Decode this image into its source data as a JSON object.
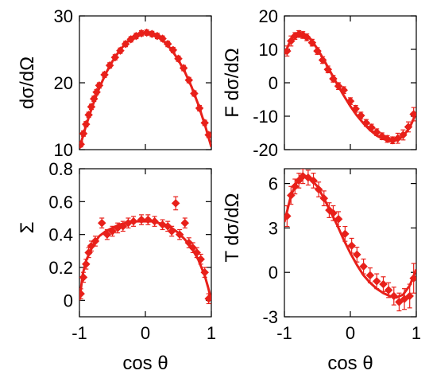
{
  "colors": {
    "series": "#e8201a",
    "axis": "#000000",
    "background": "#ffffff"
  },
  "chart_data": [
    {
      "id": "panel-tl",
      "type": "scatter",
      "ylabel": "dσ/dΩ",
      "xlabel": "",
      "xlim": [
        -1,
        1
      ],
      "ylim": [
        10,
        30
      ],
      "yticks": [
        "10",
        "20",
        "30"
      ],
      "xticks": [],
      "grid": false,
      "points": [
        {
          "x": -0.98,
          "y": 10.8,
          "err": 0.4
        },
        {
          "x": -0.94,
          "y": 12.4,
          "err": 0.4
        },
        {
          "x": -0.9,
          "y": 13.8,
          "err": 0.4
        },
        {
          "x": -0.86,
          "y": 15.2,
          "err": 0.4
        },
        {
          "x": -0.82,
          "y": 16.4,
          "err": 0.4
        },
        {
          "x": -0.78,
          "y": 17.6,
          "err": 0.4
        },
        {
          "x": -0.74,
          "y": 18.6,
          "err": 0.4
        },
        {
          "x": -0.7,
          "y": 19.6,
          "err": 0.4
        },
        {
          "x": -0.62,
          "y": 21.2,
          "err": 0.4
        },
        {
          "x": -0.54,
          "y": 22.6,
          "err": 0.4
        },
        {
          "x": -0.46,
          "y": 23.8,
          "err": 0.4
        },
        {
          "x": -0.38,
          "y": 24.8,
          "err": 0.4
        },
        {
          "x": -0.3,
          "y": 25.8,
          "err": 0.4
        },
        {
          "x": -0.22,
          "y": 26.5,
          "err": 0.4
        },
        {
          "x": -0.14,
          "y": 27.0,
          "err": 0.4
        },
        {
          "x": -0.06,
          "y": 27.4,
          "err": 0.4
        },
        {
          "x": 0.02,
          "y": 27.5,
          "err": 0.4
        },
        {
          "x": 0.1,
          "y": 27.3,
          "err": 0.4
        },
        {
          "x": 0.18,
          "y": 27.0,
          "err": 0.4
        },
        {
          "x": 0.26,
          "y": 26.6,
          "err": 0.4
        },
        {
          "x": 0.34,
          "y": 25.8,
          "err": 0.4
        },
        {
          "x": 0.42,
          "y": 24.9,
          "err": 0.4
        },
        {
          "x": 0.5,
          "y": 23.6,
          "err": 0.4
        },
        {
          "x": 0.58,
          "y": 22.2,
          "err": 0.4
        },
        {
          "x": 0.66,
          "y": 20.4,
          "err": 0.4
        },
        {
          "x": 0.74,
          "y": 18.4,
          "err": 0.4
        },
        {
          "x": 0.82,
          "y": 16.2,
          "err": 0.4
        },
        {
          "x": 0.9,
          "y": 14.0,
          "err": 0.4
        },
        {
          "x": 0.96,
          "y": 12.2,
          "err": 0.4
        }
      ],
      "curve": [
        {
          "x": -1.0,
          "y": 10.2
        },
        {
          "x": -0.9,
          "y": 13.6
        },
        {
          "x": -0.8,
          "y": 16.6
        },
        {
          "x": -0.7,
          "y": 19.2
        },
        {
          "x": -0.6,
          "y": 21.4
        },
        {
          "x": -0.5,
          "y": 23.2
        },
        {
          "x": -0.4,
          "y": 24.7
        },
        {
          "x": -0.3,
          "y": 25.9
        },
        {
          "x": -0.2,
          "y": 26.8
        },
        {
          "x": -0.1,
          "y": 27.3
        },
        {
          "x": 0.0,
          "y": 27.4
        },
        {
          "x": 0.1,
          "y": 27.2
        },
        {
          "x": 0.2,
          "y": 26.8
        },
        {
          "x": 0.3,
          "y": 26.0
        },
        {
          "x": 0.4,
          "y": 24.9
        },
        {
          "x": 0.5,
          "y": 23.4
        },
        {
          "x": 0.6,
          "y": 21.6
        },
        {
          "x": 0.7,
          "y": 19.4
        },
        {
          "x": 0.8,
          "y": 16.8
        },
        {
          "x": 0.9,
          "y": 13.8
        },
        {
          "x": 1.0,
          "y": 10.4
        }
      ]
    },
    {
      "id": "panel-tr",
      "type": "scatter",
      "ylabel": "F dσ/dΩ",
      "xlabel": "",
      "xlim": [
        -1,
        1
      ],
      "ylim": [
        -20,
        20
      ],
      "yticks": [
        "-20",
        "-10",
        "0",
        "10",
        "20"
      ],
      "xticks": [],
      "grid": false,
      "points": [
        {
          "x": -0.96,
          "y": 9.5,
          "err": 1.5
        },
        {
          "x": -0.9,
          "y": 12.5,
          "err": 1.5
        },
        {
          "x": -0.84,
          "y": 14.0,
          "err": 1.0
        },
        {
          "x": -0.78,
          "y": 14.6,
          "err": 1.0
        },
        {
          "x": -0.72,
          "y": 14.3,
          "err": 1.0
        },
        {
          "x": -0.66,
          "y": 13.6,
          "err": 1.0
        },
        {
          "x": -0.58,
          "y": 12.0,
          "err": 1.0
        },
        {
          "x": -0.5,
          "y": 9.5,
          "err": 1.0
        },
        {
          "x": -0.42,
          "y": 6.8,
          "err": 1.0
        },
        {
          "x": -0.34,
          "y": 4.0,
          "err": 1.0
        },
        {
          "x": -0.26,
          "y": 1.2,
          "err": 1.0
        },
        {
          "x": -0.18,
          "y": -1.0,
          "err": 1.0
        },
        {
          "x": -0.1,
          "y": -2.2,
          "err": 1.0
        },
        {
          "x": 0.0,
          "y": -5.5,
          "err": 1.0
        },
        {
          "x": 0.08,
          "y": -7.8,
          "err": 1.0
        },
        {
          "x": 0.16,
          "y": -9.8,
          "err": 1.0
        },
        {
          "x": 0.24,
          "y": -12.0,
          "err": 1.0
        },
        {
          "x": 0.32,
          "y": -13.4,
          "err": 1.0
        },
        {
          "x": 0.4,
          "y": -14.8,
          "err": 1.0
        },
        {
          "x": 0.48,
          "y": -16.0,
          "err": 1.0
        },
        {
          "x": 0.56,
          "y": -16.8,
          "err": 1.0
        },
        {
          "x": 0.64,
          "y": -17.2,
          "err": 1.0
        },
        {
          "x": 0.72,
          "y": -16.6,
          "err": 1.5
        },
        {
          "x": 0.8,
          "y": -15.6,
          "err": 1.5
        },
        {
          "x": 0.88,
          "y": -13.2,
          "err": 1.5
        },
        {
          "x": 0.96,
          "y": -9.4,
          "err": 2.0
        }
      ],
      "curve": [
        {
          "x": -1.0,
          "y": 8.5
        },
        {
          "x": -0.9,
          "y": 13.0
        },
        {
          "x": -0.8,
          "y": 14.8
        },
        {
          "x": -0.7,
          "y": 14.6
        },
        {
          "x": -0.6,
          "y": 13.0
        },
        {
          "x": -0.5,
          "y": 10.2
        },
        {
          "x": -0.4,
          "y": 6.8
        },
        {
          "x": -0.3,
          "y": 3.2
        },
        {
          "x": -0.2,
          "y": -0.4
        },
        {
          "x": -0.1,
          "y": -3.8
        },
        {
          "x": 0.0,
          "y": -7.0
        },
        {
          "x": 0.1,
          "y": -9.8
        },
        {
          "x": 0.2,
          "y": -12.2
        },
        {
          "x": 0.3,
          "y": -14.2
        },
        {
          "x": 0.4,
          "y": -15.8
        },
        {
          "x": 0.5,
          "y": -16.8
        },
        {
          "x": 0.6,
          "y": -17.4
        },
        {
          "x": 0.7,
          "y": -17.2
        },
        {
          "x": 0.8,
          "y": -16.0
        },
        {
          "x": 0.9,
          "y": -13.4
        },
        {
          "x": 1.0,
          "y": -9.0
        }
      ]
    },
    {
      "id": "panel-bl",
      "type": "scatter",
      "ylabel": "Σ",
      "xlabel": "cos θ",
      "xlim": [
        -1,
        1
      ],
      "ylim": [
        -0.1,
        0.8
      ],
      "yticks": [
        "0",
        "0.2",
        "0.4",
        "0.6",
        "0.8"
      ],
      "xticks": [
        "-1",
        "0",
        "1"
      ],
      "grid": false,
      "points": [
        {
          "x": -0.98,
          "y": 0.04,
          "err": 0.03
        },
        {
          "x": -0.94,
          "y": 0.14,
          "err": 0.03
        },
        {
          "x": -0.9,
          "y": 0.22,
          "err": 0.03
        },
        {
          "x": -0.86,
          "y": 0.29,
          "err": 0.03
        },
        {
          "x": -0.82,
          "y": 0.33,
          "err": 0.03
        },
        {
          "x": -0.76,
          "y": 0.36,
          "err": 0.03
        },
        {
          "x": -0.66,
          "y": 0.47,
          "err": 0.03
        },
        {
          "x": -0.58,
          "y": 0.4,
          "err": 0.03
        },
        {
          "x": -0.5,
          "y": 0.42,
          "err": 0.03
        },
        {
          "x": -0.42,
          "y": 0.44,
          "err": 0.03
        },
        {
          "x": -0.34,
          "y": 0.45,
          "err": 0.03
        },
        {
          "x": -0.26,
          "y": 0.47,
          "err": 0.03
        },
        {
          "x": -0.18,
          "y": 0.48,
          "err": 0.03
        },
        {
          "x": -0.06,
          "y": 0.49,
          "err": 0.03
        },
        {
          "x": 0.04,
          "y": 0.49,
          "err": 0.03
        },
        {
          "x": 0.14,
          "y": 0.48,
          "err": 0.03
        },
        {
          "x": 0.26,
          "y": 0.46,
          "err": 0.03
        },
        {
          "x": 0.34,
          "y": 0.45,
          "err": 0.03
        },
        {
          "x": 0.4,
          "y": 0.42,
          "err": 0.03
        },
        {
          "x": 0.46,
          "y": 0.59,
          "err": 0.04
        },
        {
          "x": 0.52,
          "y": 0.4,
          "err": 0.03
        },
        {
          "x": 0.6,
          "y": 0.47,
          "err": 0.03
        },
        {
          "x": 0.66,
          "y": 0.35,
          "err": 0.03
        },
        {
          "x": 0.72,
          "y": 0.32,
          "err": 0.03
        },
        {
          "x": 0.78,
          "y": 0.29,
          "err": 0.03
        },
        {
          "x": 0.84,
          "y": 0.25,
          "err": 0.03
        },
        {
          "x": 0.9,
          "y": 0.17,
          "err": 0.03
        },
        {
          "x": 0.96,
          "y": 0.01,
          "err": 0.03
        }
      ],
      "curve": [
        {
          "x": -1.0,
          "y": 0.0
        },
        {
          "x": -0.95,
          "y": 0.16
        },
        {
          "x": -0.9,
          "y": 0.24
        },
        {
          "x": -0.8,
          "y": 0.33
        },
        {
          "x": -0.7,
          "y": 0.39
        },
        {
          "x": -0.6,
          "y": 0.42
        },
        {
          "x": -0.5,
          "y": 0.44
        },
        {
          "x": -0.4,
          "y": 0.46
        },
        {
          "x": -0.3,
          "y": 0.47
        },
        {
          "x": -0.2,
          "y": 0.48
        },
        {
          "x": -0.1,
          "y": 0.48
        },
        {
          "x": 0.0,
          "y": 0.48
        },
        {
          "x": 0.1,
          "y": 0.48
        },
        {
          "x": 0.2,
          "y": 0.47
        },
        {
          "x": 0.3,
          "y": 0.46
        },
        {
          "x": 0.4,
          "y": 0.44
        },
        {
          "x": 0.5,
          "y": 0.41
        },
        {
          "x": 0.6,
          "y": 0.37
        },
        {
          "x": 0.7,
          "y": 0.32
        },
        {
          "x": 0.8,
          "y": 0.25
        },
        {
          "x": 0.9,
          "y": 0.15
        },
        {
          "x": 0.95,
          "y": 0.08
        },
        {
          "x": 1.0,
          "y": 0.0
        }
      ]
    },
    {
      "id": "panel-br",
      "type": "scatter",
      "ylabel": "T dσ/dΩ",
      "xlabel": "cos θ",
      "xlim": [
        -1,
        1
      ],
      "ylim": [
        -3,
        7
      ],
      "yticks": [
        "-3",
        "0",
        "3",
        "6"
      ],
      "xticks": [
        "-1",
        "0",
        "1"
      ],
      "grid": false,
      "points": [
        {
          "x": -0.96,
          "y": 3.8,
          "err": 0.7
        },
        {
          "x": -0.9,
          "y": 5.2,
          "err": 0.6
        },
        {
          "x": -0.84,
          "y": 5.8,
          "err": 0.5
        },
        {
          "x": -0.78,
          "y": 6.2,
          "err": 0.5
        },
        {
          "x": -0.72,
          "y": 6.5,
          "err": 0.5
        },
        {
          "x": -0.64,
          "y": 6.4,
          "err": 0.5
        },
        {
          "x": -0.56,
          "y": 6.2,
          "err": 0.5
        },
        {
          "x": -0.48,
          "y": 5.6,
          "err": 0.5
        },
        {
          "x": -0.4,
          "y": 5.0,
          "err": 0.5
        },
        {
          "x": -0.32,
          "y": 4.2,
          "err": 0.5
        },
        {
          "x": -0.26,
          "y": 4.0,
          "err": 0.5
        },
        {
          "x": -0.18,
          "y": 3.6,
          "err": 0.5
        },
        {
          "x": -0.08,
          "y": 2.6,
          "err": 0.5
        },
        {
          "x": 0.02,
          "y": 1.8,
          "err": 0.5
        },
        {
          "x": 0.1,
          "y": 1.2,
          "err": 0.5
        },
        {
          "x": 0.2,
          "y": 0.4,
          "err": 0.5
        },
        {
          "x": 0.3,
          "y": -0.2,
          "err": 0.5
        },
        {
          "x": 0.4,
          "y": -0.6,
          "err": 0.5
        },
        {
          "x": 0.5,
          "y": -0.8,
          "err": 0.5
        },
        {
          "x": 0.58,
          "y": -1.2,
          "err": 0.5
        },
        {
          "x": 0.66,
          "y": -1.6,
          "err": 0.6
        },
        {
          "x": 0.74,
          "y": -2.0,
          "err": 0.6
        },
        {
          "x": 0.82,
          "y": -1.8,
          "err": 0.7
        },
        {
          "x": 0.9,
          "y": -1.6,
          "err": 0.8
        },
        {
          "x": 0.96,
          "y": -0.4,
          "err": 1.0
        }
      ],
      "curve": [
        {
          "x": -1.0,
          "y": 3.4
        },
        {
          "x": -0.9,
          "y": 5.2
        },
        {
          "x": -0.8,
          "y": 6.2
        },
        {
          "x": -0.7,
          "y": 6.5
        },
        {
          "x": -0.6,
          "y": 6.3
        },
        {
          "x": -0.5,
          "y": 5.8
        },
        {
          "x": -0.4,
          "y": 5.0
        },
        {
          "x": -0.3,
          "y": 4.1
        },
        {
          "x": -0.2,
          "y": 3.2
        },
        {
          "x": -0.1,
          "y": 2.2
        },
        {
          "x": 0.0,
          "y": 1.3
        },
        {
          "x": 0.1,
          "y": 0.5
        },
        {
          "x": 0.2,
          "y": -0.2
        },
        {
          "x": 0.3,
          "y": -0.7
        },
        {
          "x": 0.4,
          "y": -1.1
        },
        {
          "x": 0.5,
          "y": -1.4
        },
        {
          "x": 0.6,
          "y": -1.6
        },
        {
          "x": 0.7,
          "y": -1.7
        },
        {
          "x": 0.8,
          "y": -1.5
        },
        {
          "x": 0.9,
          "y": -0.9
        },
        {
          "x": 1.0,
          "y": 0.2
        }
      ]
    }
  ]
}
